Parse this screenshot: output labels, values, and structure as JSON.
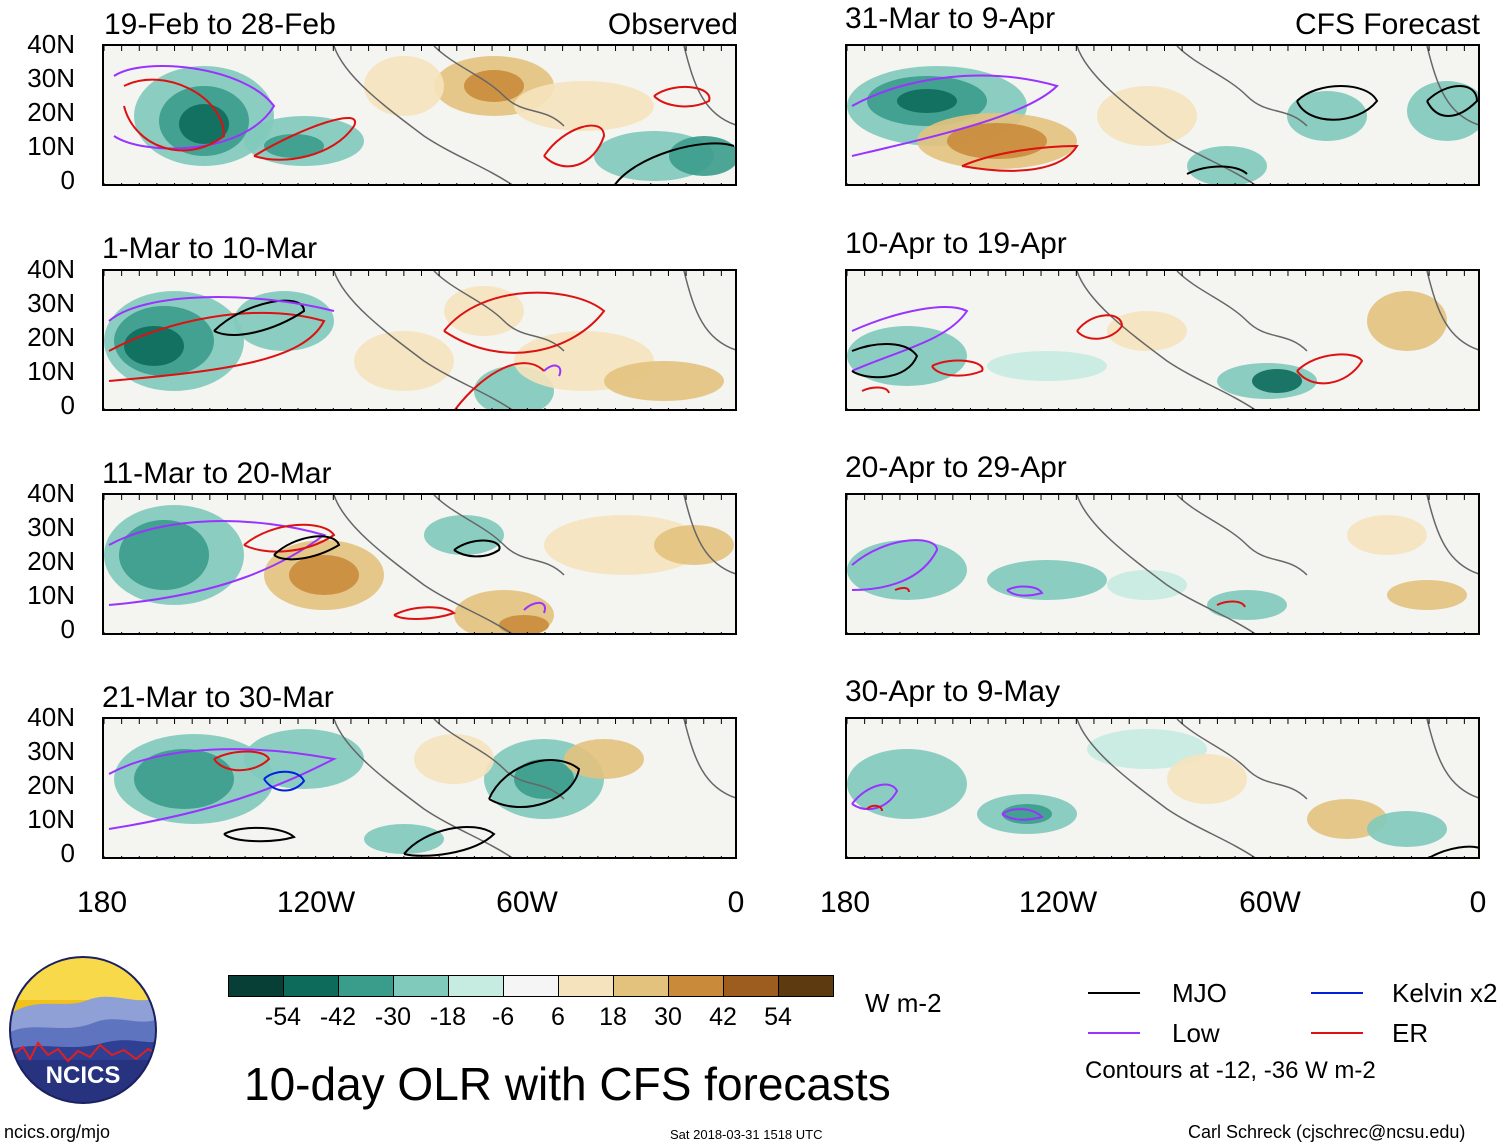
{
  "observed_label": "Observed",
  "forecast_label": "CFS Forecast",
  "panels": [
    {
      "title": "19-Feb to 28-Feb"
    },
    {
      "title": "1-Mar to 10-Mar"
    },
    {
      "title": "11-Mar to 20-Mar"
    },
    {
      "title": "21-Mar to 30-Mar"
    },
    {
      "title": "31-Mar to 9-Apr"
    },
    {
      "title": "10-Apr to 19-Apr"
    },
    {
      "title": "20-Apr to 29-Apr"
    },
    {
      "title": "30-Apr to 9-May"
    }
  ],
  "lat_labels": [
    "40N",
    "30N",
    "20N",
    "10N",
    "0"
  ],
  "lon_labels": [
    "180",
    "120W",
    "60W",
    "0"
  ],
  "colorbar": {
    "ticks": [
      "-54",
      "-42",
      "-30",
      "-18",
      "-6",
      "6",
      "18",
      "30",
      "42",
      "54"
    ],
    "colors": [
      "#073f37",
      "#0d6b5c",
      "#3a9c8b",
      "#7fcabb",
      "#c6ebe1",
      "#f5f5f5",
      "#f5e3bd",
      "#e3c27e",
      "#c98b3a",
      "#9c5d1e",
      "#5e3a10"
    ],
    "units": "W m-2"
  },
  "legend": {
    "items": [
      {
        "label": "MJO",
        "color": "#000000"
      },
      {
        "label": "Kelvin x2",
        "color": "#0022dd"
      },
      {
        "label": "Low",
        "color": "#9933ff"
      },
      {
        "label": "ER",
        "color": "#dd1111"
      }
    ],
    "contours_note": "Contours at -12, -36 W m-2"
  },
  "main_title": "10-day OLR with CFS forecasts",
  "logo_text": "NCICS",
  "footer": {
    "site": "ncics.org/mjo",
    "timestamp": "Sat 2018-03-31 1518 UTC",
    "credit": "Carl Schreck (cjschrec@ncsu.edu)"
  }
}
